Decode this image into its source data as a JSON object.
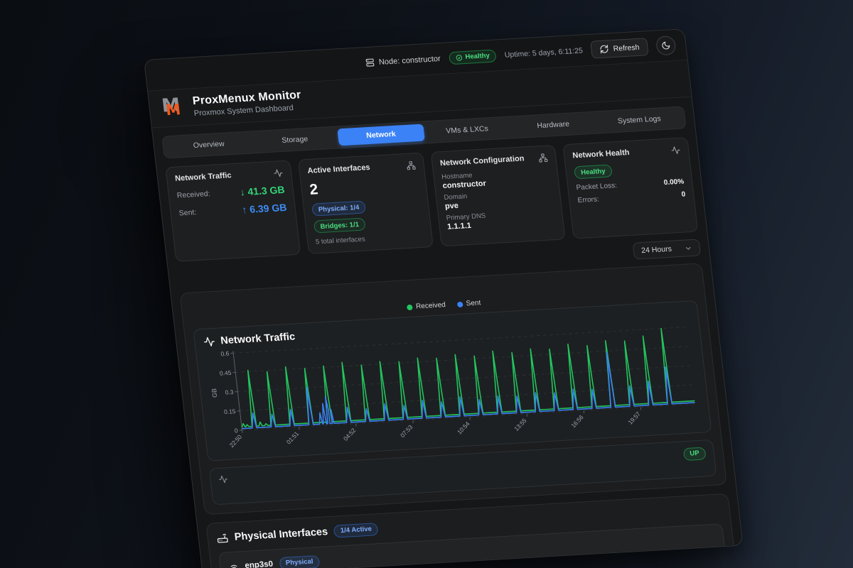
{
  "colors": {
    "accent": "#3b82f6",
    "green": "#22c55e",
    "orange": "#f0591e"
  },
  "topbar": {
    "node_label": "Node: constructor",
    "health_badge": "Healthy",
    "uptime": "Uptime: 5 days, 6:11:25",
    "refresh_label": "Refresh"
  },
  "header": {
    "title": "ProxMenux Monitor",
    "subtitle": "Proxmox System Dashboard",
    "logo_glyph": "M"
  },
  "tabs": [
    {
      "label": "Overview"
    },
    {
      "label": "Storage"
    },
    {
      "label": "Network"
    },
    {
      "label": "VMs & LXCs"
    },
    {
      "label": "Hardware"
    },
    {
      "label": "System Logs"
    }
  ],
  "cards": {
    "traffic": {
      "title": "Network Traffic",
      "received_label": "Received:",
      "received_value": "↓ 41.3 GB",
      "sent_label": "Sent:",
      "sent_value": "↑ 6.39 GB"
    },
    "interfaces": {
      "title": "Active Interfaces",
      "count": "2",
      "physical_badge": "Physical: 1/4",
      "bridges_badge": "Bridges: 1/1",
      "total": "5 total interfaces"
    },
    "config": {
      "title": "Network Configuration",
      "hostname_label": "Hostname",
      "hostname": "constructor",
      "domain_label": "Domain",
      "domain": "pve",
      "dns_label": "Primary DNS",
      "dns": "1.1.1.1"
    },
    "health": {
      "title": "Network Health",
      "status": "Healthy",
      "packet_loss_label": "Packet Loss:",
      "packet_loss": "0.00%",
      "errors_label": "Errors:",
      "errors": "0"
    }
  },
  "time_range": {
    "selected": "24 Hours"
  },
  "traffic_section": {
    "chart_title": "Network Traffic",
    "up_badge": "UP"
  },
  "physical_interfaces": {
    "title": "Physical Interfaces",
    "active_badge": "1/4 Active",
    "rows": [
      {
        "name": "enp3s0",
        "badge": "Physical"
      }
    ]
  },
  "chart_data": {
    "type": "line",
    "title": "Network Traffic",
    "ylabel": "GB",
    "ylim": [
      0,
      0.6
    ],
    "y_ticks": [
      0,
      0.15,
      0.3,
      0.45,
      0.6
    ],
    "x_range_minutes": 1440,
    "x_tick_minutes": [
      0,
      181,
      362,
      543,
      724,
      905,
      1086,
      1267
    ],
    "x_ticks": [
      "22:50",
      "01:51",
      "04:52",
      "07:53",
      "10:54",
      "13:55",
      "16:56",
      "19:57"
    ],
    "grid": true,
    "legend_position": "top-center",
    "spike_times_minutes": [
      40,
      100,
      160,
      220,
      280,
      340,
      400,
      460,
      520,
      580,
      640,
      700,
      760,
      820,
      880,
      940,
      1000,
      1060,
      1120,
      1180,
      1240,
      1300,
      1360
    ],
    "series": [
      {
        "name": "Received",
        "color": "#22c55e",
        "baseline_gb": 0.025,
        "peaks_gb": [
          0.46,
          0.44,
          0.47,
          0.45,
          0.46,
          0.48,
          0.45,
          0.47,
          0.46,
          0.48,
          0.47,
          0.49,
          0.47,
          0.5,
          0.48,
          0.5,
          0.49,
          0.52,
          0.5,
          0.53,
          0.52,
          0.55,
          0.6
        ],
        "bumps": [
          {
            "t": 6,
            "v": 0.05
          },
          {
            "t": 18,
            "v": 0.04
          },
          {
            "t": 60,
            "v": 0.055
          },
          {
            "t": 78,
            "v": 0.04
          }
        ]
      },
      {
        "name": "Sent",
        "color": "#3b82f6",
        "baseline_gb": 0.012,
        "peaks_gb": [
          0.13,
          0.11,
          0.14,
          0.3,
          0.12,
          0.13,
          0.11,
          0.14,
          0.12,
          0.15,
          0.13,
          0.16,
          0.13,
          0.15,
          0.14,
          0.16,
          0.15,
          0.17,
          0.16,
          0.44,
          0.17,
          0.2,
          0.3
        ],
        "bumps": [
          {
            "t": 252,
            "v": 0.1
          },
          {
            "t": 264,
            "v": 0.17
          },
          {
            "t": 275,
            "v": 0.22
          },
          {
            "t": 288,
            "v": 0.12
          }
        ]
      }
    ]
  }
}
